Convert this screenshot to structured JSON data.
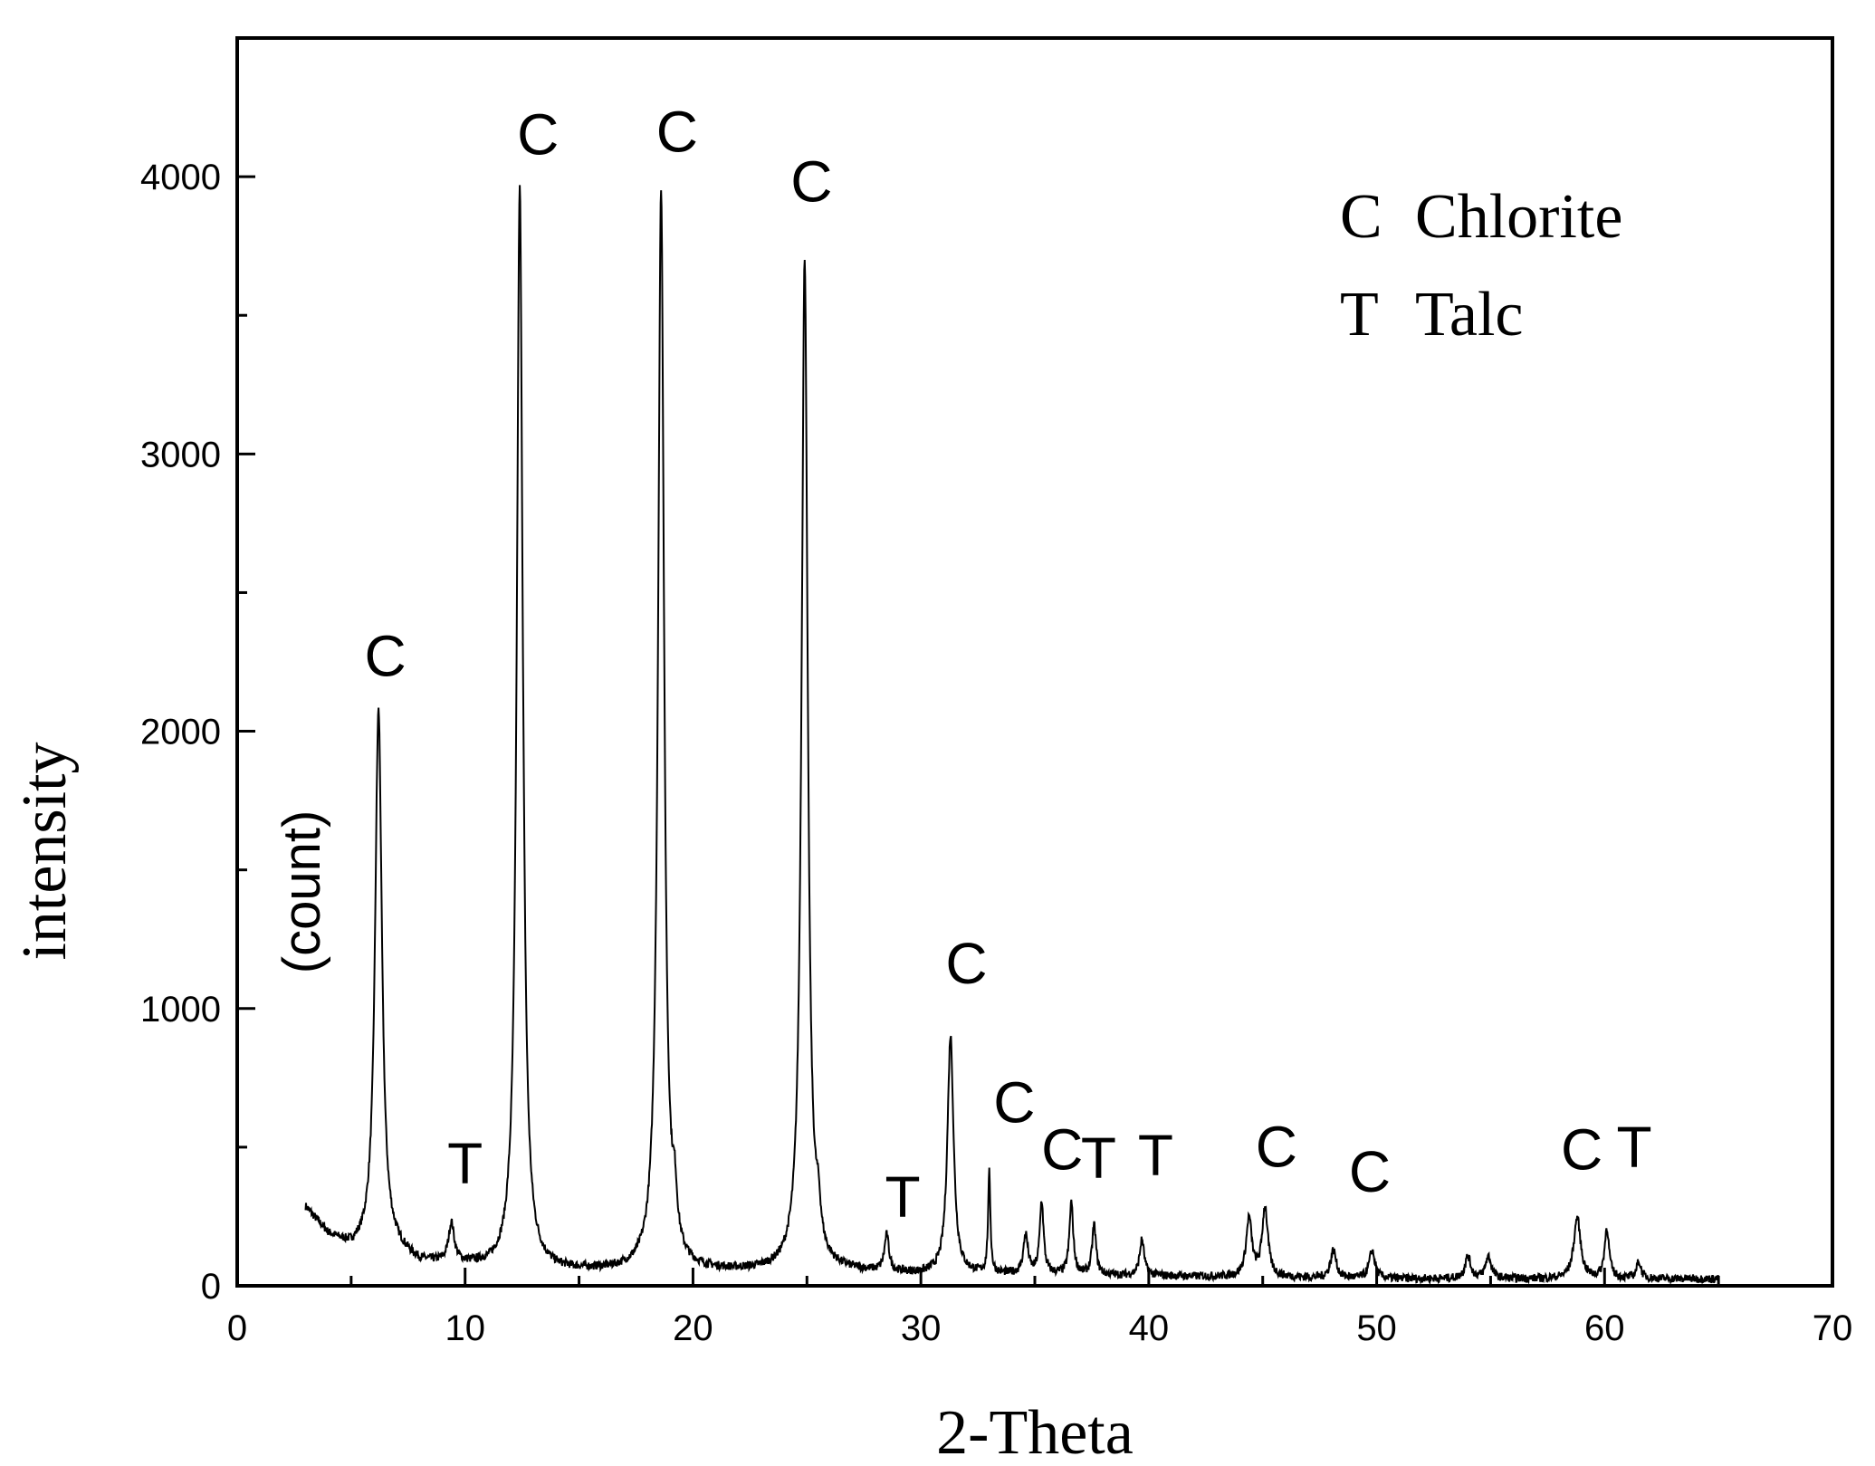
{
  "chart_data": {
    "type": "line",
    "xlabel": "2-Theta",
    "ylabel": "intensity",
    "ylabel_unit": "(count)",
    "xlim": [
      0,
      70
    ],
    "ylim": [
      0,
      4500
    ],
    "x_ticks": [
      0,
      10,
      20,
      30,
      40,
      50,
      60,
      70
    ],
    "y_ticks": [
      0,
      1000,
      2000,
      3000,
      4000
    ],
    "x_minor_ticks": [
      5,
      15,
      25,
      35,
      45,
      55,
      65
    ],
    "y_minor_ticks": [
      500,
      1500,
      2500,
      3500
    ],
    "grid": false,
    "legend_position": "top-right",
    "legend": [
      {
        "symbol": "C",
        "name": "Chlorite"
      },
      {
        "symbol": "T",
        "name": "Talc"
      }
    ],
    "series": [
      {
        "background": [
          [
            3,
            280
          ],
          [
            4,
            180
          ],
          [
            5,
            130
          ],
          [
            7,
            120
          ],
          [
            8,
            80
          ],
          [
            10,
            70
          ],
          [
            11,
            60
          ],
          [
            14,
            50
          ],
          [
            18,
            50
          ],
          [
            22,
            50
          ],
          [
            27,
            50
          ],
          [
            30,
            40
          ],
          [
            35,
            40
          ],
          [
            40,
            35
          ],
          [
            45,
            30
          ],
          [
            50,
            25
          ],
          [
            55,
            25
          ],
          [
            60,
            25
          ],
          [
            65,
            25
          ]
        ],
        "peaks": [
          {
            "x": 6.2,
            "y": 1950,
            "w": 0.18
          },
          {
            "x": 9.4,
            "y": 140,
            "w": 0.15
          },
          {
            "x": 12.4,
            "y": 3900,
            "w": 0.16
          },
          {
            "x": 18.6,
            "y": 3900,
            "w": 0.16
          },
          {
            "x": 19.2,
            "y": 160,
            "w": 0.12
          },
          {
            "x": 24.9,
            "y": 3650,
            "w": 0.16
          },
          {
            "x": 25.5,
            "y": 120,
            "w": 0.12
          },
          {
            "x": 28.5,
            "y": 130,
            "w": 0.12
          },
          {
            "x": 31.3,
            "y": 860,
            "w": 0.16
          },
          {
            "x": 33.0,
            "y": 360,
            "w": 0.06
          },
          {
            "x": 34.6,
            "y": 140,
            "w": 0.12
          },
          {
            "x": 35.3,
            "y": 260,
            "w": 0.1
          },
          {
            "x": 36.6,
            "y": 260,
            "w": 0.1
          },
          {
            "x": 37.6,
            "y": 180,
            "w": 0.1
          },
          {
            "x": 39.7,
            "y": 130,
            "w": 0.12
          },
          {
            "x": 44.4,
            "y": 210,
            "w": 0.15
          },
          {
            "x": 45.1,
            "y": 250,
            "w": 0.15
          },
          {
            "x": 48.1,
            "y": 100,
            "w": 0.15
          },
          {
            "x": 49.8,
            "y": 100,
            "w": 0.15
          },
          {
            "x": 54.0,
            "y": 80,
            "w": 0.15
          },
          {
            "x": 54.9,
            "y": 80,
            "w": 0.15
          },
          {
            "x": 58.8,
            "y": 220,
            "w": 0.18
          },
          {
            "x": 60.1,
            "y": 180,
            "w": 0.12
          },
          {
            "x": 61.5,
            "y": 60,
            "w": 0.12
          }
        ],
        "x_range": [
          3,
          65
        ]
      }
    ],
    "annotations": [
      {
        "text": "C",
        "x": 6.5,
        "y": 2200
      },
      {
        "text": "T",
        "x": 10.0,
        "y": 370
      },
      {
        "text": "C",
        "x": 13.2,
        "y": 4080
      },
      {
        "text": "C",
        "x": 19.3,
        "y": 4090
      },
      {
        "text": "C",
        "x": 25.2,
        "y": 3910
      },
      {
        "text": "T",
        "x": 29.2,
        "y": 250
      },
      {
        "text": "C",
        "x": 32.0,
        "y": 1090
      },
      {
        "text": "C",
        "x": 34.1,
        "y": 590
      },
      {
        "text": "C",
        "x": 36.2,
        "y": 420
      },
      {
        "text": "T",
        "x": 37.8,
        "y": 390
      },
      {
        "text": "T",
        "x": 40.3,
        "y": 400
      },
      {
        "text": "C",
        "x": 45.6,
        "y": 430
      },
      {
        "text": "C",
        "x": 49.7,
        "y": 340
      },
      {
        "text": "C",
        "x": 59.0,
        "y": 420
      },
      {
        "text": "T",
        "x": 61.3,
        "y": 430
      }
    ]
  }
}
